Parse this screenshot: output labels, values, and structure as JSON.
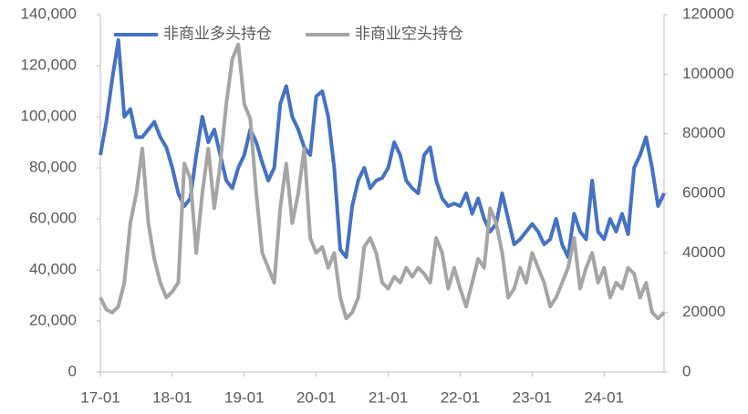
{
  "chart_data": {
    "type": "line",
    "categories": [
      "17-01",
      null,
      null,
      null,
      null,
      null,
      null,
      null,
      null,
      null,
      null,
      null,
      "18-01",
      null,
      null,
      null,
      null,
      null,
      null,
      null,
      null,
      null,
      null,
      null,
      "19-01",
      null,
      null,
      null,
      null,
      null,
      null,
      null,
      null,
      null,
      null,
      null,
      "20-01",
      null,
      null,
      null,
      null,
      null,
      null,
      null,
      null,
      null,
      null,
      null,
      "21-01",
      null,
      null,
      null,
      null,
      null,
      null,
      null,
      null,
      null,
      null,
      null,
      "22-01",
      null,
      null,
      null,
      null,
      null,
      null,
      null,
      null,
      null,
      null,
      null,
      "23-01",
      null,
      null,
      null,
      null,
      null,
      null,
      null,
      null,
      null,
      null,
      null,
      "24-01",
      null,
      null,
      null,
      null,
      null,
      null,
      null,
      null,
      null,
      null
    ],
    "series": [
      {
        "name": "非商业多头持仓",
        "color": "#4472c4",
        "axis": "y",
        "values": [
          85000,
          98000,
          115000,
          130000,
          100000,
          103000,
          92000,
          92000,
          95000,
          98000,
          92000,
          88000,
          80000,
          70000,
          65000,
          68000,
          85000,
          100000,
          90000,
          95000,
          85000,
          75000,
          72000,
          80000,
          85000,
          95000,
          90000,
          82000,
          75000,
          80000,
          105000,
          112000,
          100000,
          95000,
          88000,
          85000,
          108000,
          110000,
          100000,
          80000,
          48000,
          45000,
          65000,
          75000,
          80000,
          72000,
          75000,
          76000,
          80000,
          90000,
          85000,
          75000,
          72000,
          70000,
          85000,
          88000,
          75000,
          68000,
          65000,
          66000,
          65000,
          70000,
          62000,
          68000,
          60000,
          55000,
          58000,
          70000,
          60000,
          50000,
          52000,
          55000,
          58000,
          55000,
          50000,
          52000,
          60000,
          50000,
          45000,
          62000,
          55000,
          52000,
          75000,
          55000,
          52000,
          60000,
          55000,
          62000,
          54000,
          80000,
          85000,
          92000,
          80000,
          65000,
          70000
        ]
      },
      {
        "name": "非商业空头持仓",
        "color": "#a5a5a5",
        "axis": "y2",
        "values": [
          25000,
          21000,
          20000,
          22000,
          30000,
          50000,
          60000,
          75000,
          50000,
          38000,
          30000,
          25000,
          27000,
          30000,
          70000,
          65000,
          40000,
          60000,
          75000,
          55000,
          70000,
          90000,
          105000,
          110000,
          90000,
          85000,
          60000,
          40000,
          35000,
          30000,
          55000,
          70000,
          50000,
          60000,
          75000,
          45000,
          40000,
          42000,
          35000,
          40000,
          25000,
          18000,
          20000,
          25000,
          42000,
          45000,
          40000,
          30000,
          28000,
          32000,
          30000,
          35000,
          32000,
          35000,
          33000,
          30000,
          45000,
          40000,
          28000,
          35000,
          28000,
          22000,
          30000,
          38000,
          35000,
          55000,
          50000,
          40000,
          25000,
          28000,
          35000,
          30000,
          40000,
          35000,
          30000,
          22000,
          25000,
          30000,
          35000,
          45000,
          28000,
          35000,
          40000,
          30000,
          35000,
          25000,
          30000,
          28000,
          35000,
          33000,
          25000,
          30000,
          20000,
          18000,
          20000
        ]
      }
    ],
    "ylim": [
      0,
      140000
    ],
    "yticks": [
      0,
      {
        "value": 20000,
        "label": "20,000"
      },
      {
        "value": 40000,
        "label": "40,000"
      },
      {
        "value": 60000,
        "label": "60,000"
      },
      {
        "value": 80000,
        "label": "80,000"
      },
      {
        "value": 100000,
        "label": "100,000"
      },
      {
        "value": 120000,
        "label": "120,000"
      },
      {
        "value": 140000,
        "label": "140,000"
      }
    ],
    "y2lim": [
      0,
      120000
    ],
    "y2ticks": [
      0,
      20000,
      40000,
      60000,
      80000,
      100000,
      120000
    ],
    "grid": false,
    "legend": "top-left"
  }
}
